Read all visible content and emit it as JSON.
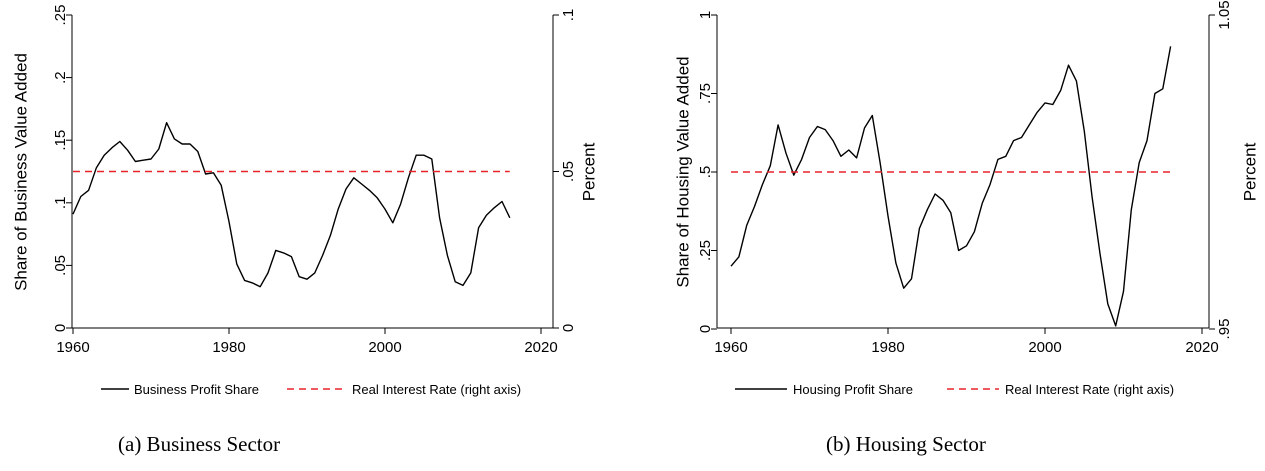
{
  "chart_data": [
    {
      "type": "line",
      "caption": "(a) Business Sector",
      "ylabel": "Share of Business Value Added",
      "y2label": "Percent",
      "xlim": [
        1960,
        2020
      ],
      "ylim": [
        0,
        0.25
      ],
      "y2lim": [
        0,
        0.1
      ],
      "x_ticks": [
        "1960",
        "1980",
        "2000",
        "2020"
      ],
      "y_ticks": [
        "0",
        ".05",
        ".1",
        ".15",
        ".2",
        ".25"
      ],
      "y2_ticks": [
        "0",
        ".05",
        ".1"
      ],
      "grid": false,
      "legend_position": "bottom",
      "series": [
        {
          "name": "Business Profit Share",
          "axis": "left",
          "color": "#000000",
          "style": "solid",
          "x": [
            1960,
            1961,
            1962,
            1963,
            1964,
            1965,
            1966,
            1967,
            1968,
            1969,
            1970,
            1971,
            1972,
            1973,
            1974,
            1975,
            1976,
            1977,
            1978,
            1979,
            1980,
            1981,
            1982,
            1983,
            1984,
            1985,
            1986,
            1987,
            1988,
            1989,
            1990,
            1991,
            1992,
            1993,
            1994,
            1995,
            1996,
            1997,
            1998,
            1999,
            2000,
            2001,
            2002,
            2003,
            2004,
            2005,
            2006,
            2007,
            2008,
            2009,
            2010,
            2011,
            2012,
            2013,
            2014,
            2015,
            2016
          ],
          "y": [
            0.091,
            0.105,
            0.11,
            0.128,
            0.138,
            0.144,
            0.149,
            0.142,
            0.133,
            0.134,
            0.135,
            0.143,
            0.164,
            0.151,
            0.147,
            0.147,
            0.141,
            0.123,
            0.124,
            0.114,
            0.085,
            0.051,
            0.038,
            0.036,
            0.033,
            0.044,
            0.062,
            0.06,
            0.057,
            0.041,
            0.039,
            0.044,
            0.058,
            0.074,
            0.095,
            0.111,
            0.12,
            0.115,
            0.11,
            0.104,
            0.095,
            0.084,
            0.099,
            0.12,
            0.138,
            0.138,
            0.135,
            0.088,
            0.058,
            0.037,
            0.034,
            0.044,
            0.08,
            0.09,
            0.096,
            0.101,
            0.088
          ]
        },
        {
          "name": "Real Interest Rate (right axis)",
          "axis": "right",
          "color": "#e8232a",
          "style": "dashed",
          "x": [
            1960,
            2016
          ],
          "y": [
            0.05,
            0.05
          ]
        }
      ]
    },
    {
      "type": "line",
      "caption": "(b) Housing Sector",
      "ylabel": "Share of Housing Value Added",
      "y2label": "Percent",
      "xlim": [
        1960,
        2020
      ],
      "ylim": [
        0,
        1
      ],
      "y2lim": [
        0.95,
        1.05
      ],
      "x_ticks": [
        "1960",
        "1980",
        "2000",
        "2020"
      ],
      "y_ticks": [
        "0",
        ".25",
        ".5",
        ".75",
        "1"
      ],
      "y2_ticks": [
        ".95",
        "1.05"
      ],
      "grid": false,
      "legend_position": "bottom",
      "series": [
        {
          "name": "Housing Profit Share",
          "axis": "left",
          "color": "#000000",
          "style": "solid",
          "x": [
            1960,
            1961,
            1962,
            1963,
            1964,
            1965,
            1966,
            1967,
            1968,
            1969,
            1970,
            1971,
            1972,
            1973,
            1974,
            1975,
            1976,
            1977,
            1978,
            1979,
            1980,
            1981,
            1982,
            1983,
            1984,
            1985,
            1986,
            1987,
            1988,
            1989,
            1990,
            1991,
            1992,
            1993,
            1994,
            1995,
            1996,
            1997,
            1998,
            1999,
            2000,
            2001,
            2002,
            2003,
            2004,
            2005,
            2006,
            2007,
            2008,
            2009,
            2010,
            2011,
            2012,
            2013,
            2014,
            2015,
            2016
          ],
          "y": [
            0.2,
            0.23,
            0.33,
            0.39,
            0.46,
            0.52,
            0.65,
            0.56,
            0.49,
            0.54,
            0.61,
            0.645,
            0.635,
            0.6,
            0.55,
            0.57,
            0.545,
            0.64,
            0.68,
            0.53,
            0.36,
            0.21,
            0.13,
            0.16,
            0.32,
            0.38,
            0.43,
            0.41,
            0.37,
            0.25,
            0.265,
            0.31,
            0.4,
            0.46,
            0.54,
            0.55,
            0.6,
            0.61,
            0.65,
            0.69,
            0.72,
            0.715,
            0.76,
            0.84,
            0.79,
            0.63,
            0.42,
            0.24,
            0.08,
            0.01,
            0.12,
            0.38,
            0.53,
            0.6,
            0.75,
            0.765,
            0.9
          ]
        },
        {
          "name": "Real Interest Rate (right axis)",
          "axis": "right",
          "color": "#e8232a",
          "style": "dashed",
          "x": [
            1960,
            2016
          ],
          "y": [
            1.0,
            1.0
          ]
        }
      ]
    }
  ]
}
